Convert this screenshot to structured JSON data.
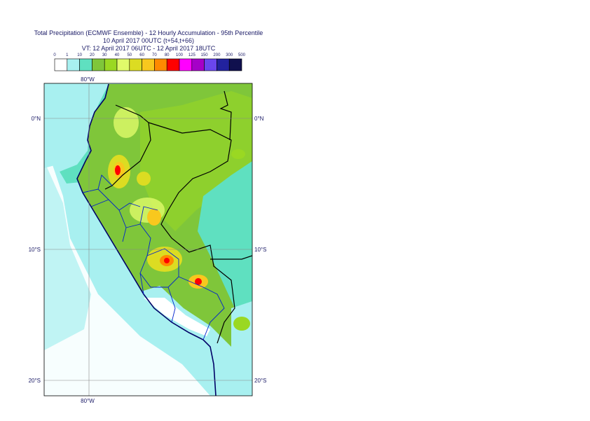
{
  "header": {
    "title": "Total Precipitation (ECMWF Ensemble) - 12 Hourly Accumulation - 95th Percentile",
    "run": "10 April 2017 00UTC (t+54,t+66)",
    "valid": "VT: 12 April 2017 06UTC - 12 April 2017 18UTC"
  },
  "legend": {
    "labels": [
      0,
      1,
      10,
      20,
      30,
      40,
      50,
      60,
      70,
      80,
      100,
      125,
      150,
      200,
      300,
      500
    ],
    "colors": [
      "#ffffff",
      "#a8f0f0",
      "#5fe0c0",
      "#7fc63a",
      "#9ad822",
      "#e0fa6a",
      "#dcdc22",
      "#f8c81e",
      "#ff8a00",
      "#ff0000",
      "#ff00ff",
      "#a600c8",
      "#6a46ee",
      "#22229e",
      "#10104e"
    ]
  },
  "map": {
    "lon_labels": [
      "80°W"
    ],
    "lat_labels": [
      "0°N",
      "10°S",
      "20°S"
    ]
  }
}
